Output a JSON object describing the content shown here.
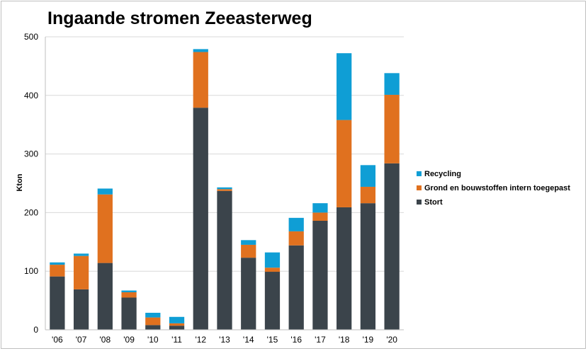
{
  "chart_data": {
    "type": "bar",
    "stacked": true,
    "title": "Ingaande stromen Zeeasterweg",
    "xlabel": "",
    "ylabel": "Kton",
    "ylim": [
      0,
      500
    ],
    "yticks": [
      0,
      100,
      200,
      300,
      400,
      500
    ],
    "grid": true,
    "legend_position": "right",
    "categories": [
      "'06",
      "'07",
      "'08",
      "'09",
      "'10",
      "'11",
      "'12",
      "'13",
      "'14",
      "'15",
      "'16",
      "'17",
      "'18",
      "'19",
      "'20"
    ],
    "series": [
      {
        "name": "Stort",
        "color": "#3b444b",
        "values": [
          91,
          69,
          114,
          55,
          8,
          7,
          379,
          237,
          123,
          99,
          144,
          186,
          209,
          216,
          284
        ]
      },
      {
        "name": "Grond en bouwstoffen intern toegepast",
        "color": "#e0711f",
        "values": [
          20,
          57,
          117,
          9,
          13,
          4,
          95,
          3,
          22,
          7,
          24,
          14,
          149,
          28,
          117
        ]
      },
      {
        "name": "Recycling",
        "color": "#0f9ed5",
        "values": [
          4,
          4,
          10,
          3,
          8,
          11,
          5,
          3,
          8,
          26,
          23,
          16,
          114,
          37,
          37
        ]
      }
    ],
    "legend_order": [
      "Recycling",
      "Grond en bouwstoffen intern toegepast",
      "Stort"
    ]
  }
}
